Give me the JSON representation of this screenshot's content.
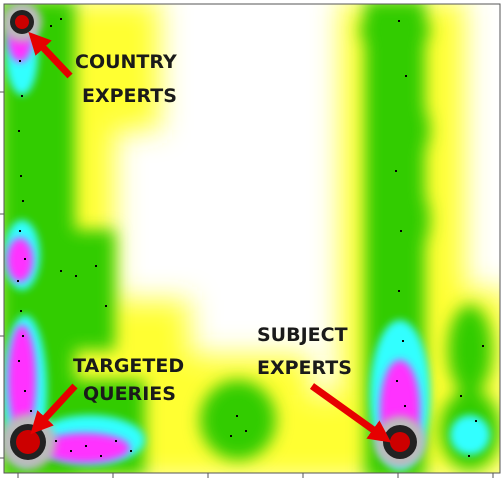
{
  "chart_data": {
    "type": "heatmap",
    "title": "",
    "xlabel": "",
    "ylabel": "",
    "colorscale": [
      "#ffffff",
      "#ffff33",
      "#33cc00",
      "#33ffff",
      "#ff33ff",
      "#999999",
      "#222222",
      "#cc0000"
    ],
    "density_regions": [
      {
        "name": "country-experts-cluster",
        "x": 0.03,
        "y": 0.97,
        "intensity": 1.0
      },
      {
        "name": "targeted-queries-cluster",
        "x": 0.04,
        "y": 0.03,
        "intensity": 1.0
      },
      {
        "name": "subject-experts-cluster",
        "x": 0.84,
        "y": 0.03,
        "intensity": 1.0
      },
      {
        "name": "left-column-mid-cluster",
        "x": 0.03,
        "y": 0.46,
        "intensity": 0.75
      },
      {
        "name": "right-column-mid",
        "x": 0.83,
        "y": 0.55,
        "intensity": 0.45
      },
      {
        "name": "middle-bottom",
        "x": 0.5,
        "y": 0.09,
        "intensity": 0.45
      },
      {
        "name": "right-bottom",
        "x": 0.97,
        "y": 0.06,
        "intensity": 0.45
      }
    ],
    "annotations": [
      {
        "line1": "COUNTRY",
        "line2": "EXPERTS",
        "target": "country-experts-cluster"
      },
      {
        "line1": "TARGETED",
        "line2": "QUERIES",
        "target": "targeted-queries-cluster"
      },
      {
        "line1": "SUBJECT",
        "line2": "EXPERTS",
        "target": "subject-experts-cluster"
      }
    ],
    "arrow_color": "#e60000"
  }
}
